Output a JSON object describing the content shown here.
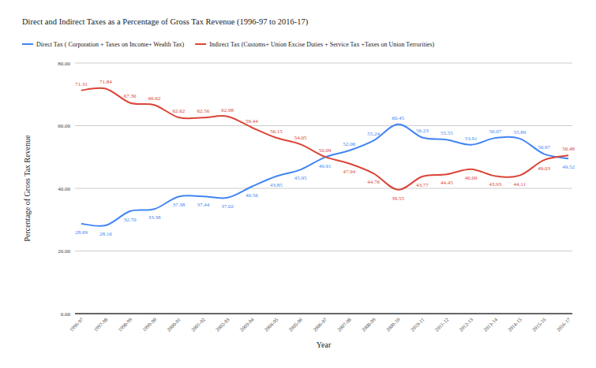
{
  "chart_data": {
    "type": "line",
    "title": "Direct and Indirect Taxes as a Percentage of Gross Tax Revenue (1996-97 to 2016-17)",
    "x_label": "Year",
    "y_label": "Percentage of Gross Tax Revenue",
    "categories": [
      "1996-97",
      "1997-98",
      "1998-99",
      "1999-00",
      "2000-01",
      "2001-02",
      "2002-03",
      "2003-04",
      "2004-05",
      "2005-06",
      "2006-07",
      "2007-08",
      "2008-09",
      "2009-10",
      "2010-11",
      "2011-12",
      "2012-13",
      "2013-14",
      "2014-15",
      "2015-16",
      "2016-17"
    ],
    "series": [
      {
        "name": "Direct Tax ( Corporation + Taxes on Income+ Wealth Tax)",
        "color": "#4285f4",
        "line_style": "smooth",
        "values": [
          28.69,
          28.16,
          32.7,
          33.38,
          37.38,
          37.44,
          37.02,
          40.56,
          43.85,
          45.95,
          49.91,
          52.06,
          55.24,
          60.45,
          56.23,
          55.55,
          53.91,
          56.07,
          55.89,
          50.97,
          49.52
        ],
        "value_labels": [
          "28.69",
          "28.16",
          "32.70",
          "33.38",
          "37.38",
          "37.44",
          "37.02",
          "40.56",
          "43.85",
          "45.95",
          "49.91",
          "52.06",
          "55.24",
          "60.45",
          "56.23",
          "55.55",
          "53.91",
          "56.07",
          "55.89",
          "50.97",
          "49.52"
        ]
      },
      {
        "name": "Indirect Tax (Customs+ Union Excise Duties + Service Tax +Taxes on Union Terrorities)",
        "color": "#db4437",
        "line_style": "smooth",
        "values": [
          71.31,
          71.84,
          67.3,
          66.62,
          62.62,
          62.56,
          62.98,
          59.44,
          56.15,
          54.05,
          50.09,
          47.94,
          44.76,
          39.55,
          43.77,
          44.45,
          46.09,
          43.93,
          44.11,
          49.03,
          50.48
        ],
        "value_labels": [
          "71.31",
          "71.84",
          "67.30",
          "66.62",
          "62.62",
          "62.56",
          "62.98",
          "59.44",
          "56.15",
          "54.05",
          "50.09",
          "47.94",
          "44.76",
          "39.55",
          "43.77",
          "44.45",
          "46.09",
          "43.93",
          "44.11",
          "49.03",
          "50.48"
        ]
      }
    ],
    "ylim": [
      0,
      80
    ],
    "yticks": [
      {
        "value": 0,
        "label": "0.00"
      },
      {
        "value": 20,
        "label": "20.00"
      },
      {
        "value": 40,
        "label": "40.00"
      },
      {
        "value": 60,
        "label": "60.00"
      },
      {
        "value": 80,
        "label": "80.00"
      }
    ],
    "grid": true,
    "legend": "top",
    "data_labels": true
  }
}
